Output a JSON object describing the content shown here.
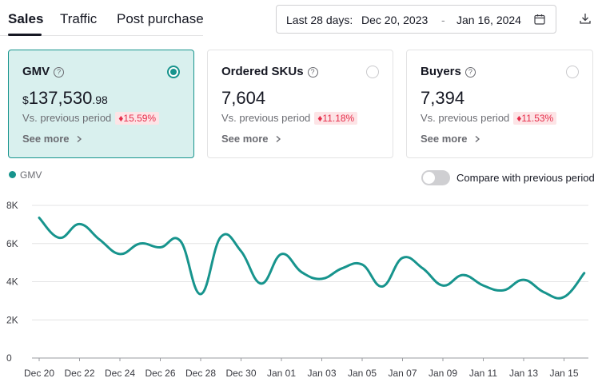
{
  "tabs": [
    {
      "label": "Sales",
      "active": true
    },
    {
      "label": "Traffic",
      "active": false
    },
    {
      "label": "Post purchase",
      "active": false
    }
  ],
  "date_range": {
    "prefix": "Last 28 days:",
    "start": "Dec 20, 2023",
    "separator": "-",
    "end": "Jan 16, 2024"
  },
  "icons": {
    "calendar": "calendar-icon",
    "download": "download-icon",
    "help": "help-icon",
    "chevron": "chevron-right-icon",
    "decrease": "arrow-down-icon"
  },
  "help_glyph": "?",
  "decrease_glyph": "♦",
  "metrics": [
    {
      "title": "GMV",
      "currency": "$",
      "value": "137,530",
      "decimal": ".98",
      "vs_label": "Vs. previous period",
      "change": "15.59%",
      "trend": "down",
      "see_more": "See more",
      "selected": true
    },
    {
      "title": "Ordered SKUs",
      "currency": "",
      "value": "7,604",
      "decimal": "",
      "vs_label": "Vs. previous period",
      "change": "11.18%",
      "trend": "down",
      "see_more": "See more",
      "selected": false
    },
    {
      "title": "Buyers",
      "currency": "",
      "value": "7,394",
      "decimal": "",
      "vs_label": "Vs. previous period",
      "change": "11.53%",
      "trend": "down",
      "see_more": "See more",
      "selected": false
    }
  ],
  "compare_toggle": {
    "label": "Compare with previous period",
    "on": false
  },
  "colors": {
    "accent": "#17948d",
    "negative": "#e62e4b",
    "negative_bg": "#fde4e6",
    "grid": "#e3e3e4"
  },
  "chart_data": {
    "type": "line",
    "title": "",
    "xlabel": "",
    "ylabel": "",
    "legend": {
      "entries": [
        "GMV"
      ],
      "placement": "top-left"
    },
    "grid": true,
    "ylim": [
      0,
      8000
    ],
    "y_ticks": [
      0,
      2000,
      4000,
      6000,
      8000
    ],
    "y_tick_labels": [
      "0",
      "2K",
      "4K",
      "6K",
      "8K"
    ],
    "x_tick_labels": [
      "Dec 20",
      "Dec 22",
      "Dec 24",
      "Dec 26",
      "Dec 28",
      "Dec 30",
      "Jan 01",
      "Jan 03",
      "Jan 05",
      "Jan 07",
      "Jan 09",
      "Jan 11",
      "Jan 13",
      "Jan 15"
    ],
    "series": [
      {
        "name": "GMV",
        "x": [
          "Dec 20",
          "Dec 21",
          "Dec 22",
          "Dec 23",
          "Dec 24",
          "Dec 25",
          "Dec 26",
          "Dec 27",
          "Dec 28",
          "Dec 29",
          "Dec 30",
          "Dec 31",
          "Jan 01",
          "Jan 02",
          "Jan 03",
          "Jan 04",
          "Jan 05",
          "Jan 06",
          "Jan 07",
          "Jan 08",
          "Jan 09",
          "Jan 10",
          "Jan 11",
          "Jan 12",
          "Jan 13",
          "Jan 14",
          "Jan 15",
          "Jan 16"
        ],
        "values": [
          7350,
          6300,
          7020,
          6200,
          5450,
          6000,
          5800,
          6130,
          3350,
          6350,
          5600,
          3900,
          5450,
          4500,
          4150,
          4700,
          4900,
          3750,
          5250,
          4700,
          3800,
          4350,
          3800,
          3550,
          4100,
          3450,
          3200,
          4450
        ]
      }
    ]
  }
}
